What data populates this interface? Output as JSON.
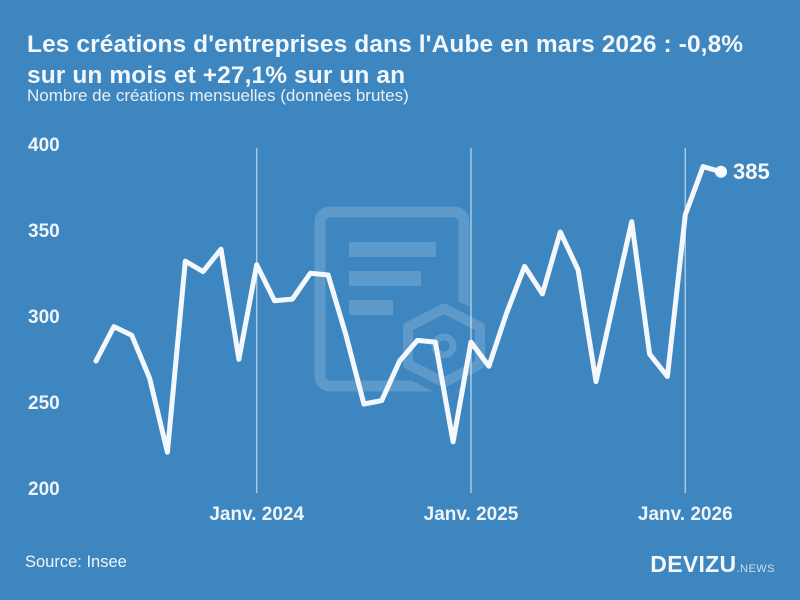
{
  "header": {
    "title_line1": "Les créations d'entreprises dans l'Aube en mars 2026 : -0,8%",
    "title_line2": "sur un mois et +27,1% sur un an",
    "subtitle": "Nombre de créations mensuelles (données brutes)"
  },
  "footer": {
    "source": "Source: Insee",
    "brand_name": "DEVIZU",
    "brand_suffix": ".NEWS"
  },
  "colors": {
    "background": "#3e86bf",
    "line": "#f4f8fc",
    "gridline": "rgba(255,255,255,0.55)",
    "watermark": "rgba(255,255,255,0.16)",
    "text": "#ffffff"
  },
  "chart_data": {
    "type": "line",
    "title": "Les créations d'entreprises dans l'Aube en mars 2026 : -0,8% sur un mois et +27,1% sur un an",
    "subtitle": "Nombre de créations mensuelles (données brutes)",
    "source": "Source: Insee",
    "x": [
      "2023-04",
      "2023-05",
      "2023-06",
      "2023-07",
      "2023-08",
      "2023-09",
      "2023-10",
      "2023-11",
      "2023-12",
      "2024-01",
      "2024-02",
      "2024-03",
      "2024-04",
      "2024-05",
      "2024-06",
      "2024-07",
      "2024-08",
      "2024-09",
      "2024-10",
      "2024-11",
      "2024-12",
      "2025-01",
      "2025-02",
      "2025-03",
      "2025-04",
      "2025-05",
      "2025-06",
      "2025-07",
      "2025-08",
      "2025-09",
      "2025-10",
      "2025-11",
      "2025-12",
      "2026-01",
      "2026-02",
      "2026-03"
    ],
    "values": [
      275,
      295,
      290,
      265,
      222,
      333,
      327,
      340,
      276,
      331,
      310,
      311,
      326,
      325,
      290,
      250,
      252,
      275,
      287,
      286,
      228,
      286,
      272,
      303,
      330,
      314,
      350,
      328,
      263,
      310,
      356,
      279,
      266,
      360,
      388,
      385
    ],
    "ylim": [
      200,
      400
    ],
    "yticks": [
      200,
      250,
      300,
      350,
      400
    ],
    "xticks": [
      {
        "index": 9,
        "label": "Janv. 2024"
      },
      {
        "index": 21,
        "label": "Janv. 2025"
      },
      {
        "index": 33,
        "label": "Janv. 2026"
      }
    ],
    "end_label": "385",
    "grid": "vertical-only",
    "legend": "none"
  }
}
